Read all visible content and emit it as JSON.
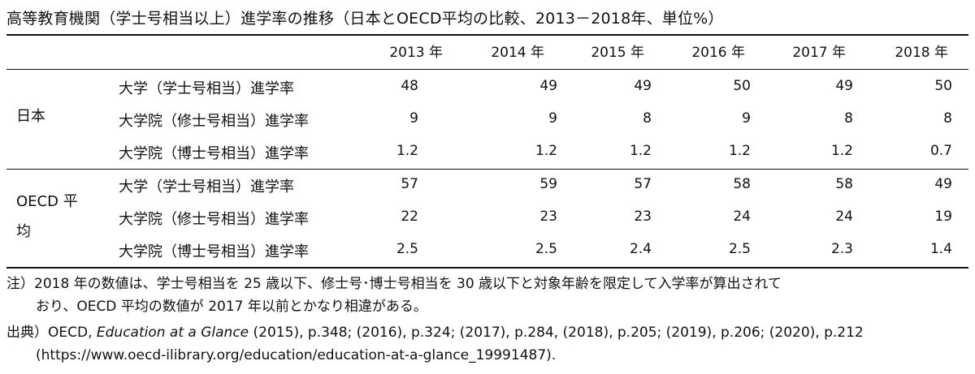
{
  "title": "高等教育機関（学士号相当以上）進学率の推移（日本とOECD平均の比較、2013－2018年、単位%）",
  "years": [
    "2013 年",
    "2014 年",
    "2015 年",
    "2016 年",
    "2017 年",
    "2018 年"
  ],
  "groups": [
    {
      "name": "日本",
      "rows": [
        {
          "label": "大学（学士号相当）進学率",
          "values": [
            "48",
            "49",
            "49",
            "50",
            "49",
            "50"
          ]
        },
        {
          "label": "大学院（修士号相当）進学率",
          "values": [
            "9",
            "9",
            "8",
            "9",
            "8",
            "8"
          ]
        },
        {
          "label": "大学院（博士号相当）進学率",
          "values": [
            "1.2",
            "1.2",
            "1.2",
            "1.2",
            "1.2",
            "0.7"
          ]
        }
      ]
    },
    {
      "name_line1": "OECD 平",
      "name_line2": "均",
      "rows": [
        {
          "label": "大学（学士号相当）進学率",
          "values": [
            "57",
            "59",
            "57",
            "58",
            "58",
            "49"
          ]
        },
        {
          "label": "大学院（修士号相当）進学率",
          "values": [
            "22",
            "23",
            "23",
            "24",
            "24",
            "19"
          ]
        },
        {
          "label": "大学院（博士号相当）進学率",
          "values": [
            "2.5",
            "2.5",
            "2.4",
            "2.5",
            "2.3",
            "1.4"
          ]
        }
      ]
    }
  ],
  "note": {
    "line1": "注）2018 年の数値は、学士号相当を 25 歳以下、修士号･博士号相当を 30 歳以下と対象年齢を限定して入学率が算出されて",
    "line2": "おり、OECD 平均の数値が 2017 年以前とかなり相違がある。"
  },
  "source": {
    "prefix": "出典）OECD, ",
    "title": "Education at a Glance",
    "rest": " (2015), p.348; (2016), p.324; (2017), p.284, (2018), p.205; (2019), p.206; (2020), p.212",
    "url": "(https://www.oecd-ilibrary.org/education/education-at-a-glance_19991487)."
  }
}
